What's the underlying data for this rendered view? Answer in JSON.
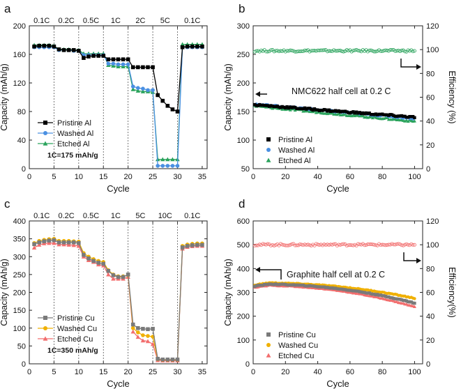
{
  "figure": {
    "panel_letters": [
      "a",
      "b",
      "c",
      "d"
    ]
  },
  "chart_data": [
    {
      "panel": "a",
      "type": "line",
      "xlabel": "Cycle",
      "ylabel": "Capacity (mAh/g)",
      "xlim": [
        0,
        36
      ],
      "ylim": [
        0,
        200
      ],
      "xticks": [
        0,
        5,
        10,
        15,
        20,
        25,
        30,
        35
      ],
      "yticks": [
        0,
        40,
        80,
        120,
        160,
        200
      ],
      "rate_dividers": [
        5,
        10,
        15,
        20,
        25,
        30
      ],
      "rate_labels": [
        {
          "text": "0.1C",
          "x": 2.5
        },
        {
          "text": "0.2C",
          "x": 7.5
        },
        {
          "text": "0.5C",
          "x": 12.5
        },
        {
          "text": "1C",
          "x": 17.5
        },
        {
          "text": "2C",
          "x": 22.5
        },
        {
          "text": "5C",
          "x": 27.5
        },
        {
          "text": "0.1C",
          "x": 33
        }
      ],
      "annotation": "1C=175 mAh/g",
      "legend_position": "lower-left",
      "series": [
        {
          "name": "Pristine Al",
          "marker": "square",
          "color": "#000000",
          "x": [
            1,
            2,
            3,
            4,
            5,
            6,
            7,
            8,
            9,
            10,
            11,
            12,
            13,
            14,
            15,
            16,
            17,
            18,
            19,
            20,
            21,
            22,
            23,
            24,
            25,
            26,
            27,
            28,
            29,
            30,
            31,
            32,
            33,
            34,
            35
          ],
          "values": [
            171,
            172,
            172,
            172,
            171,
            167,
            166,
            166,
            166,
            165,
            155,
            157,
            158,
            158,
            158,
            153,
            153,
            153,
            153,
            153,
            142,
            142,
            142,
            142,
            142,
            103,
            95,
            88,
            83,
            80,
            170,
            171,
            171,
            171,
            171
          ]
        },
        {
          "name": "Washed Al",
          "marker": "circle",
          "color": "#4a90e2",
          "x": [
            1,
            2,
            3,
            4,
            5,
            6,
            7,
            8,
            9,
            10,
            11,
            12,
            13,
            14,
            15,
            16,
            17,
            18,
            19,
            20,
            21,
            22,
            23,
            24,
            25,
            26,
            27,
            28,
            29,
            30,
            31,
            32,
            33,
            34,
            35
          ],
          "values": [
            170,
            170,
            170,
            170,
            170,
            166,
            166,
            166,
            165,
            165,
            159,
            159,
            159,
            159,
            159,
            147,
            147,
            146,
            146,
            146,
            115,
            113,
            112,
            110,
            110,
            4,
            4,
            4,
            4,
            4,
            170,
            170,
            170,
            170,
            170
          ]
        },
        {
          "name": "Etched Al",
          "marker": "triangle",
          "color": "#2aa35c",
          "x": [
            1,
            2,
            3,
            4,
            5,
            6,
            7,
            8,
            9,
            10,
            11,
            12,
            13,
            14,
            15,
            16,
            17,
            18,
            19,
            20,
            21,
            22,
            23,
            24,
            25,
            26,
            27,
            28,
            29,
            30,
            31,
            32,
            33,
            34,
            35
          ],
          "values": [
            173,
            173,
            173,
            173,
            172,
            167,
            167,
            167,
            166,
            166,
            161,
            161,
            161,
            161,
            161,
            145,
            144,
            143,
            143,
            143,
            111,
            109,
            108,
            108,
            107,
            13,
            13,
            13,
            13,
            13,
            174,
            174,
            174,
            174,
            174
          ]
        }
      ]
    },
    {
      "panel": "b",
      "type": "scatter",
      "xlabel": "Cycle",
      "ylabel": "Capacity (mAh/g)",
      "y2label": "Efficiency (%)",
      "xlim": [
        0,
        105
      ],
      "ylim": [
        50,
        300
      ],
      "y2lim": [
        0,
        120
      ],
      "xticks": [
        0,
        20,
        40,
        60,
        80,
        100
      ],
      "yticks": [
        50,
        100,
        150,
        200,
        250,
        300
      ],
      "y2ticks": [
        0,
        20,
        40,
        60,
        80,
        100,
        120
      ],
      "annotation": "NMC622 half cell at 0.2 C",
      "legend_position": "lower-left",
      "series": [
        {
          "name": "Pristine Al",
          "marker": "square",
          "color": "#000000",
          "axis": "left",
          "start": 162,
          "end": 140
        },
        {
          "name": "Washed Al",
          "marker": "circle",
          "color": "#4a90e2",
          "axis": "left",
          "start": 163,
          "end": 138
        },
        {
          "name": "Etched Al",
          "marker": "triangle",
          "color": "#2aa35c",
          "axis": "left",
          "start": 160,
          "end": 133
        },
        {
          "name": "Efficiency",
          "marker": "open-circle",
          "color": "#2aa35c",
          "axis": "right",
          "start": 99,
          "end": 99
        }
      ]
    },
    {
      "panel": "c",
      "type": "line",
      "xlabel": "Cycle",
      "ylabel": "Capacity (mAh/g)",
      "xlim": [
        0,
        36
      ],
      "ylim": [
        0,
        400
      ],
      "xticks": [
        0,
        5,
        10,
        15,
        20,
        25,
        30,
        35
      ],
      "yticks": [
        0,
        50,
        100,
        150,
        200,
        250,
        300,
        350,
        400
      ],
      "rate_dividers": [
        5,
        10,
        15,
        20,
        25,
        30
      ],
      "rate_labels": [
        {
          "text": "0.1C",
          "x": 2.5
        },
        {
          "text": "0.2C",
          "x": 7.5
        },
        {
          "text": "0.5C",
          "x": 12.5
        },
        {
          "text": "1C",
          "x": 17.5
        },
        {
          "text": "5C",
          "x": 22.5
        },
        {
          "text": "10C",
          "x": 27.5
        },
        {
          "text": "0.1C",
          "x": 33
        }
      ],
      "annotation": "1C=350 mAh/g",
      "legend_position": "lower-left",
      "series": [
        {
          "name": "Pristine Cu",
          "marker": "square",
          "color": "#7a7a7a",
          "x": [
            1,
            2,
            3,
            4,
            5,
            6,
            7,
            8,
            9,
            10,
            11,
            12,
            13,
            14,
            15,
            16,
            17,
            18,
            19,
            20,
            21,
            22,
            23,
            24,
            25,
            26,
            27,
            28,
            29,
            30,
            31,
            32,
            33,
            34,
            35
          ],
          "values": [
            335,
            340,
            343,
            345,
            346,
            340,
            340,
            340,
            340,
            338,
            305,
            295,
            288,
            283,
            280,
            260,
            248,
            243,
            243,
            250,
            110,
            100,
            98,
            97,
            98,
            14,
            12,
            12,
            12,
            12,
            326,
            330,
            332,
            333,
            333
          ]
        },
        {
          "name": "Washed Cu",
          "marker": "circle",
          "color": "#f0b000",
          "x": [
            1,
            2,
            3,
            4,
            5,
            6,
            7,
            8,
            9,
            10,
            11,
            12,
            13,
            14,
            15,
            16,
            17,
            18,
            19,
            20,
            21,
            22,
            23,
            24,
            25,
            26,
            27,
            28,
            29,
            30,
            31,
            32,
            33,
            34,
            35
          ],
          "values": [
            338,
            344,
            347,
            349,
            350,
            344,
            344,
            344,
            343,
            342,
            310,
            300,
            293,
            288,
            285,
            262,
            250,
            245,
            245,
            248,
            100,
            88,
            80,
            78,
            76,
            13,
            11,
            11,
            11,
            11,
            330,
            334,
            336,
            337,
            337
          ]
        },
        {
          "name": "Etched Cu",
          "marker": "triangle",
          "color": "#f26d6d",
          "x": [
            1,
            2,
            3,
            4,
            5,
            6,
            7,
            8,
            9,
            10,
            11,
            12,
            13,
            14,
            15,
            16,
            17,
            18,
            19,
            20,
            21,
            22,
            23,
            24,
            25,
            26,
            27,
            28,
            29,
            30,
            31,
            32,
            33,
            34,
            35
          ],
          "values": [
            325,
            333,
            337,
            338,
            338,
            334,
            334,
            333,
            332,
            330,
            300,
            290,
            285,
            278,
            275,
            250,
            238,
            238,
            238,
            243,
            90,
            75,
            65,
            63,
            55,
            10,
            9,
            9,
            9,
            9,
            322,
            327,
            329,
            330,
            330
          ]
        }
      ]
    },
    {
      "panel": "d",
      "type": "scatter",
      "xlabel": "Cycle",
      "ylabel": "Capacity (mAh/g)",
      "y2label": "Efficiency(%)",
      "xlim": [
        0,
        105
      ],
      "ylim": [
        0,
        600
      ],
      "y2lim": [
        0,
        120
      ],
      "xticks": [
        0,
        20,
        40,
        60,
        80,
        100
      ],
      "yticks": [
        0,
        100,
        200,
        300,
        400,
        500,
        600
      ],
      "y2ticks": [
        0,
        20,
        40,
        60,
        80,
        100,
        120
      ],
      "annotation": "Graphite half cell at 0.2 C",
      "legend_position": "lower-left",
      "series": [
        {
          "name": "Pristine Cu",
          "marker": "square",
          "color": "#7a7a7a",
          "axis": "left",
          "start": 335,
          "end": 255
        },
        {
          "name": "Washed Cu",
          "marker": "circle",
          "color": "#f0b000",
          "axis": "left",
          "start": 340,
          "end": 275
        },
        {
          "name": "Etched Cu",
          "marker": "triangle",
          "color": "#f26d6d",
          "axis": "left",
          "start": 330,
          "end": 240
        },
        {
          "name": "Efficiency",
          "marker": "open-circle",
          "color": "#f26d6d",
          "axis": "right",
          "start": 100,
          "end": 100
        }
      ]
    }
  ]
}
